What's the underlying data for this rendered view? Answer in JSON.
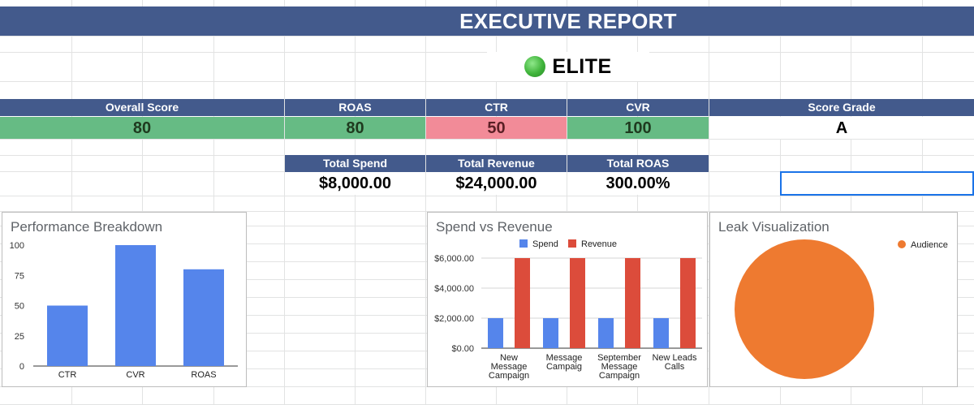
{
  "report": {
    "title": "EXECUTIVE REPORT",
    "tier_label": "ELITE",
    "tier_color": "#3fb33a"
  },
  "metrics": {
    "overall": {
      "label": "Overall Score",
      "value": "80",
      "color": "#66bb84"
    },
    "roas": {
      "label": "ROAS",
      "value": "80",
      "color": "#66bb84"
    },
    "ctr": {
      "label": "CTR",
      "value": "50",
      "color": "#f28b98"
    },
    "cvr": {
      "label": "CVR",
      "value": "100",
      "color": "#66bb84"
    },
    "grade": {
      "label": "Score Grade",
      "value": "A",
      "color": "#ffffff"
    }
  },
  "totals": {
    "spend": {
      "label": "Total Spend",
      "value": "$8,000.00"
    },
    "revenue": {
      "label": "Total Revenue",
      "value": "$24,000.00"
    },
    "roas": {
      "label": "Total ROAS",
      "value": "300.00%"
    }
  },
  "chart_data": [
    {
      "type": "bar",
      "title": "Performance Breakdown",
      "categories": [
        "CTR",
        "CVR",
        "ROAS"
      ],
      "values": [
        50,
        100,
        80
      ],
      "ylim": [
        0,
        100
      ],
      "yticks": [
        "0",
        "25",
        "50",
        "75",
        "100"
      ],
      "color": "#5585eb",
      "legend": "none",
      "grid": false
    },
    {
      "type": "bar",
      "title": "Spend vs Revenue",
      "categories": [
        [
          "New",
          "Message",
          "Campaign"
        ],
        [
          "Message",
          "Campaig"
        ],
        [
          "September",
          "Message",
          "Campaign"
        ],
        [
          "New Leads",
          "Calls"
        ]
      ],
      "series": [
        {
          "name": "Spend",
          "values": [
            2000,
            2000,
            2000,
            2000
          ],
          "color": "#5585eb"
        },
        {
          "name": "Revenue",
          "values": [
            6000,
            6000,
            6000,
            6000
          ],
          "color": "#dc4c3b"
        }
      ],
      "ylim": [
        0,
        6000
      ],
      "yticks": [
        "$0.00",
        "$2,000.00",
        "$4,000.00",
        "$6,000.00"
      ],
      "legend": "top",
      "grid": true
    },
    {
      "type": "pie",
      "title": "Leak Visualization",
      "slices": [
        {
          "name": "Audience",
          "value": 100,
          "color": "#ee7a30"
        }
      ],
      "legend": "right"
    }
  ]
}
